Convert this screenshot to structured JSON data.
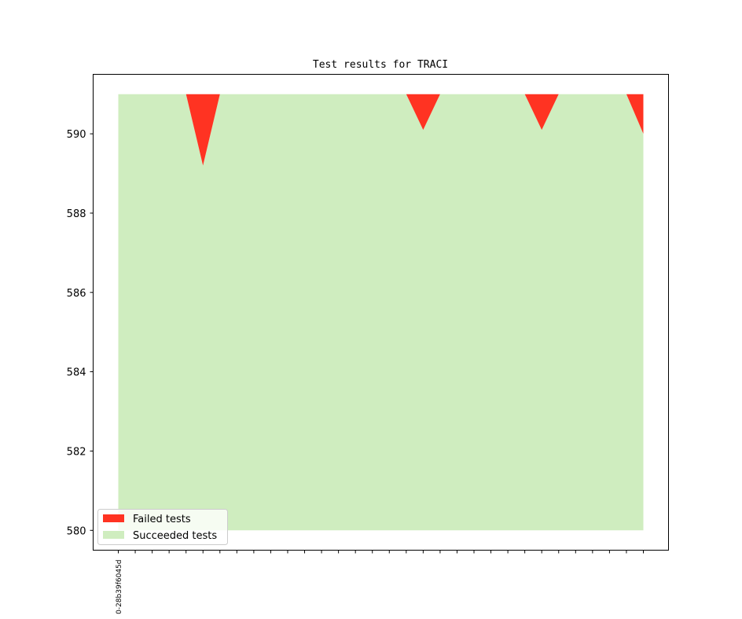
{
  "chart_data": {
    "type": "area",
    "title": "Test results for TRACI",
    "xlabel": "",
    "ylabel": "",
    "ylim": [
      579.5,
      591.5
    ],
    "y_ticks": [
      580,
      582,
      584,
      586,
      588,
      590
    ],
    "x_count": 32,
    "x_tick_labels": [
      "0-28b39f6045d"
    ],
    "legend": {
      "placement": "lower-left",
      "entries": [
        "Failed tests",
        "Succeeded tests"
      ]
    },
    "colors": {
      "failed": "#ff3322",
      "succeeded": "#cfedbf"
    },
    "series": [
      {
        "name": "Succeeded tests",
        "values": [
          591,
          591,
          591,
          591,
          591,
          589.2,
          591,
          591,
          591,
          591,
          591,
          591,
          591,
          591,
          591,
          591,
          591,
          591,
          590.1,
          591,
          591,
          591,
          591,
          591,
          591,
          590.1,
          591,
          591,
          591,
          591,
          591,
          590
        ]
      },
      {
        "name": "Failed tests",
        "values": [
          0,
          0,
          0,
          0,
          0,
          1.8,
          0,
          0,
          0,
          0,
          0,
          0,
          0,
          0,
          0,
          0,
          0,
          0,
          0.9,
          0,
          0,
          0,
          0,
          0,
          0,
          0.9,
          0,
          0,
          0,
          0,
          0,
          1
        ]
      }
    ],
    "baseline": 580
  }
}
